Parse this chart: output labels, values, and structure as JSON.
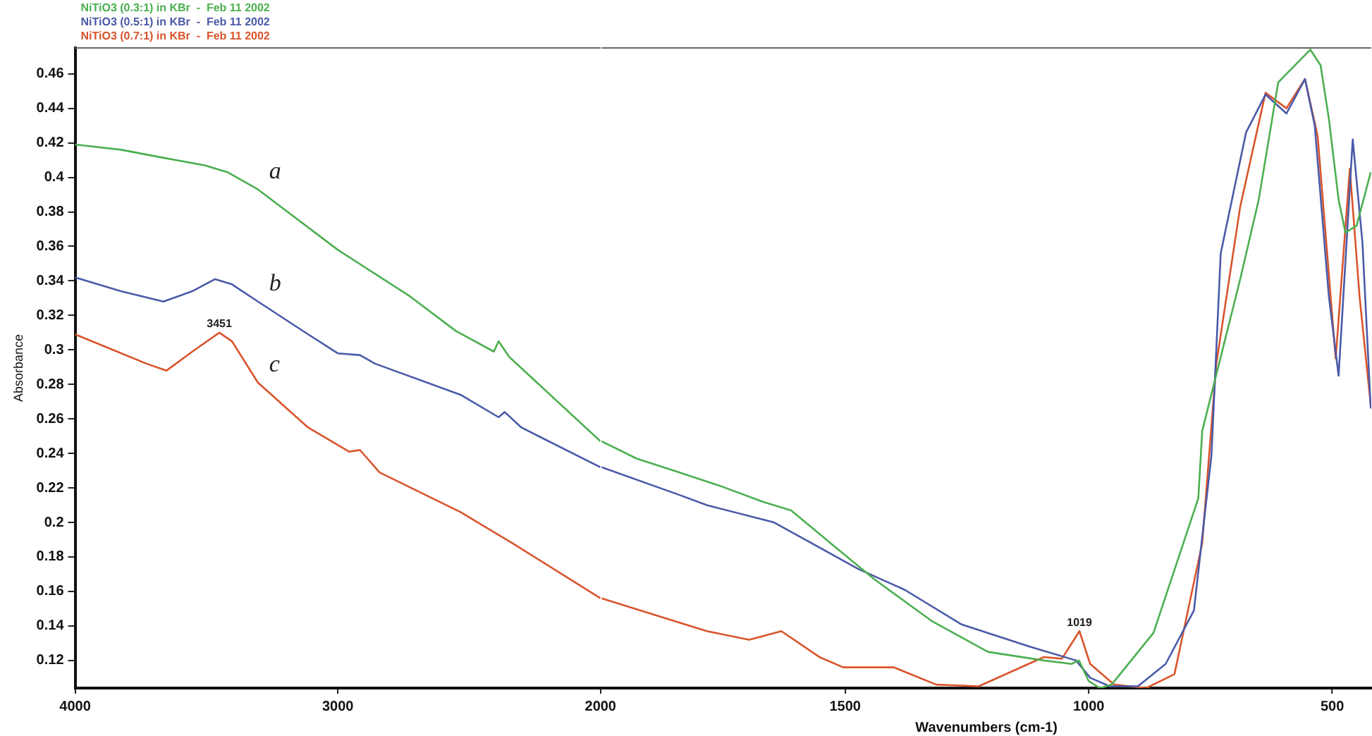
{
  "chart_data": [
    {
      "type": "line",
      "ylabel": "Absorbance",
      "xlim": [
        4000,
        2000
      ],
      "xticks": [
        4000,
        3000,
        2000
      ],
      "ylim": [
        0.104,
        0.475
      ],
      "yticks": [
        0.12,
        0.14,
        0.16,
        0.18,
        0.2,
        0.22,
        0.24,
        0.26,
        0.28,
        0.3,
        0.32,
        0.34,
        0.36,
        0.38,
        0.4,
        0.42,
        0.44,
        0.46
      ],
      "grid": false,
      "legend": "top left",
      "marker": "none",
      "line_style": "solid",
      "series": [
        {
          "name": "NiTiO3 (0.3:1) in KBr  -  Feb 11 2002",
          "color": "#4caf50",
          "x": [
            4000,
            3826,
            3652,
            3507,
            3420,
            3304,
            3000,
            2725,
            2551,
            2406,
            2388,
            2348,
            2000
          ],
          "values": [
            0.419,
            0.416,
            0.411,
            0.407,
            0.403,
            0.393,
            0.358,
            0.331,
            0.311,
            0.299,
            0.305,
            0.296,
            0.247
          ]
        },
        {
          "name": "NiTiO3 (0.5:1) in KBr  -  Feb 11 2002",
          "color": "#4a5aa8",
          "x": [
            4000,
            3826,
            3664,
            3554,
            3467,
            3403,
            3304,
            3113,
            3000,
            2916,
            2858,
            2533,
            2388,
            2365,
            2301,
            2000
          ],
          "values": [
            0.342,
            0.334,
            0.328,
            0.334,
            0.341,
            0.338,
            0.328,
            0.309,
            0.298,
            0.297,
            0.292,
            0.274,
            0.261,
            0.264,
            0.255,
            0.232
          ]
        },
        {
          "name": "NiTiO3 (0.7:1) in KBr  -  Feb 11 2002",
          "color": "#d9542c",
          "x": [
            4000,
            3728,
            3652,
            3554,
            3451,
            3403,
            3304,
            3113,
            2957,
            2916,
            2841,
            2533,
            2336,
            2000
          ],
          "values": [
            0.309,
            0.292,
            0.288,
            0.299,
            0.31,
            0.305,
            0.281,
            0.255,
            0.241,
            0.242,
            0.229,
            0.206,
            0.188,
            0.156
          ]
        }
      ],
      "annotations": [
        {
          "text": "a",
          "x": 3304,
          "y": 0.393
        },
        {
          "text": "b",
          "x": 3304,
          "y": 0.328
        },
        {
          "text": "c",
          "x": 3304,
          "y": 0.281
        },
        {
          "text": "3451",
          "x": 3451,
          "y": 0.31
        }
      ]
    },
    {
      "type": "line",
      "xlabel": "Wavenumbers (cm-1)",
      "xlim": [
        2000,
        420
      ],
      "xticks": [
        1500,
        1000,
        500
      ],
      "ylim": [
        0.104,
        0.475
      ],
      "tick_labels": "x",
      "grid": false,
      "marker": "none",
      "line_style": "solid",
      "series": [
        {
          "color": "#4caf50",
          "x": [
            2000,
            1928,
            1841,
            1755,
            1669,
            1611,
            1530,
            1440,
            1323,
            1207,
            1092,
            1035,
            1020,
            1000,
            977,
            953,
            867,
            775,
            767,
            689,
            651,
            611,
            545,
            524,
            507,
            487,
            473,
            450,
            421
          ],
          "values": [
            0.247,
            0.237,
            0.229,
            0.221,
            0.212,
            0.207,
            0.188,
            0.167,
            0.143,
            0.125,
            0.12,
            0.118,
            0.12,
            0.108,
            0.104,
            0.106,
            0.136,
            0.214,
            0.253,
            0.341,
            0.387,
            0.455,
            0.474,
            0.465,
            0.434,
            0.387,
            0.368,
            0.372,
            0.403
          ]
        },
        {
          "color": "#4a5aa8",
          "x": [
            2000,
            1841,
            1784,
            1646,
            1473,
            1378,
            1262,
            1121,
            1026,
            997,
            957,
            899,
            842,
            784,
            748,
            729,
            677,
            637,
            594,
            556,
            536,
            507,
            487,
            458,
            438,
            421
          ],
          "values": [
            0.232,
            0.216,
            0.21,
            0.2,
            0.173,
            0.161,
            0.141,
            0.128,
            0.12,
            0.11,
            0.105,
            0.105,
            0.118,
            0.149,
            0.239,
            0.356,
            0.426,
            0.448,
            0.437,
            0.457,
            0.43,
            0.331,
            0.285,
            0.422,
            0.362,
            0.266
          ]
        },
        {
          "color": "#d9542c",
          "x": [
            2000,
            1841,
            1784,
            1697,
            1631,
            1553,
            1504,
            1400,
            1313,
            1226,
            1092,
            1055,
            1019,
            997,
            948,
            882,
            824,
            767,
            738,
            689,
            637,
            594,
            556,
            530,
            493,
            464,
            444,
            421
          ],
          "values": [
            0.156,
            0.142,
            0.137,
            0.132,
            0.137,
            0.122,
            0.116,
            0.116,
            0.106,
            0.105,
            0.122,
            0.121,
            0.137,
            0.118,
            0.106,
            0.104,
            0.112,
            0.188,
            0.292,
            0.383,
            0.449,
            0.44,
            0.457,
            0.424,
            0.295,
            0.405,
            0.331,
            0.268
          ]
        }
      ],
      "annotations": [
        {
          "text": "1019",
          "x": 1019,
          "y": 0.137
        }
      ]
    }
  ]
}
